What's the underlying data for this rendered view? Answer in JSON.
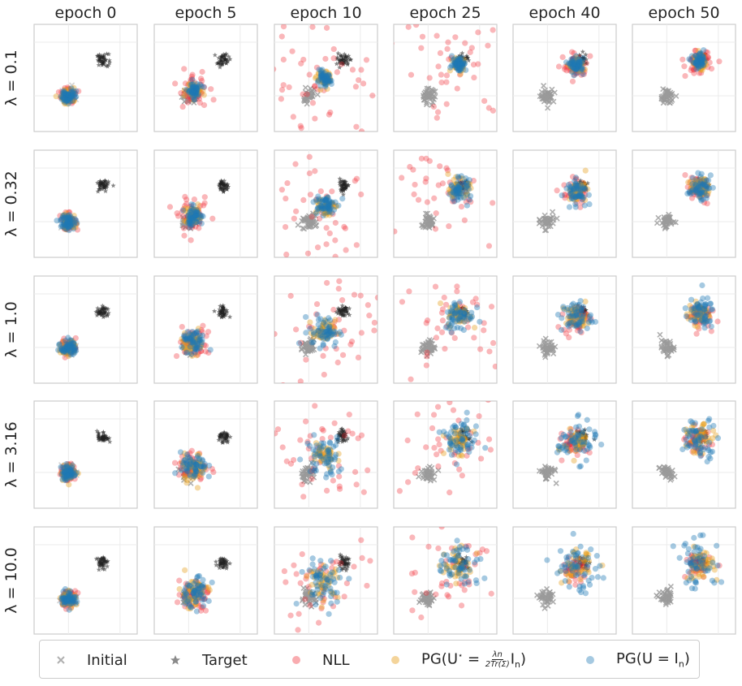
{
  "chart_data": {
    "type": "scatter",
    "title": "",
    "columns": [
      "epoch 0",
      "epoch 5",
      "epoch 10",
      "epoch 25",
      "epoch 40",
      "epoch 50"
    ],
    "rows": [
      "λ = 0.1",
      "λ = 0.32",
      "λ = 1.0",
      "λ = 3.16",
      "λ = 10.0"
    ],
    "series": [
      {
        "name": "Initial",
        "marker": "x",
        "color": "#a6a6a6"
      },
      {
        "name": "Target",
        "marker": "star",
        "color": "#222222"
      },
      {
        "name": "NLL",
        "marker": "circle",
        "color": "#f0303a"
      },
      {
        "name": "PG(U* = λn/(2Tr(Σ)) I_n)",
        "marker": "circle",
        "color": "#e6a020"
      },
      {
        "name": "PG(U = I_n)",
        "marker": "circle",
        "color": "#1f77b4"
      }
    ],
    "xlim": [
      -2,
      4
    ],
    "ylim": [
      -2,
      4
    ],
    "grid": true,
    "initial_center": [
      0,
      0
    ],
    "target_center": [
      2,
      2
    ],
    "legend_position": "bottom"
  },
  "legend": {
    "initial": "Initial",
    "target": "Target",
    "nll": "NLL",
    "pg_ustar_prefix": "PG(U",
    "pg_ustar_eq": " = ",
    "pg_ustar_num": "λn",
    "pg_ustar_den": "2Tr(Σ)",
    "pg_ustar_suffix": "I",
    "pg_ustar_sub": "n",
    "pg_ustar_close": ")",
    "pg_id_prefix": "PG(U = I",
    "pg_id_sub": "n",
    "pg_id_close": ")"
  }
}
